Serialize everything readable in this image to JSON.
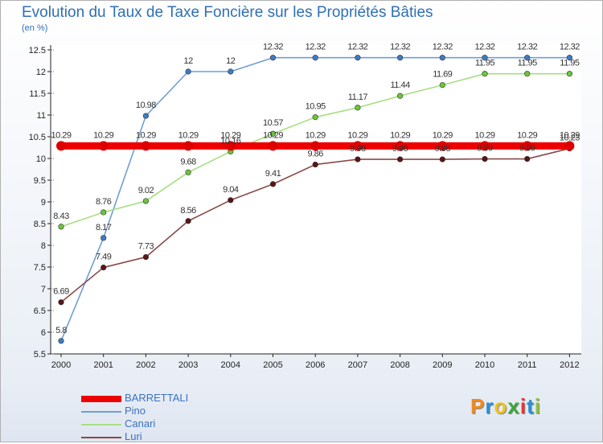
{
  "header": {
    "title": "Evolution du Taux de Taxe Foncière sur les Propriétés Bâties",
    "unit": "(en %)"
  },
  "chart_data": {
    "type": "line",
    "title": "Evolution du Taux de Taxe Foncière sur les Propriétés Bâties",
    "ylabel": "(en %)",
    "xlabel": "",
    "x": [
      "2000",
      "2001",
      "2002",
      "2003",
      "2004",
      "2005",
      "2006",
      "2007",
      "2008",
      "2009",
      "2010",
      "2011",
      "2012"
    ],
    "ylim": [
      5.5,
      12.5
    ],
    "yticks": [
      "5.5",
      "6",
      "6.5",
      "7",
      "7.5",
      "8",
      "8.5",
      "9",
      "9.5",
      "10",
      "10.5",
      "11",
      "11.5",
      "12",
      "12.5"
    ],
    "grid": false,
    "legend_position": "bottom-left",
    "series": [
      {
        "name": "BARRETTALI",
        "color": "#ee0000",
        "marker": "#dd0000",
        "emphasis": true,
        "values": [
          10.29,
          10.29,
          10.29,
          10.29,
          10.29,
          10.29,
          10.29,
          10.29,
          10.29,
          10.29,
          10.29,
          10.29,
          10.29
        ],
        "labels": [
          "10.29",
          "10.29",
          "10.29",
          "10.29",
          "10.29",
          "10.29",
          "10.29",
          "10.29",
          "10.29",
          "10.29",
          "10.29",
          "10.29",
          "10.29"
        ]
      },
      {
        "name": "Pino",
        "color": "#6f9fd4",
        "marker": "#3d7bc4",
        "values": [
          5.8,
          8.17,
          10.98,
          12,
          12,
          12.32,
          12.32,
          12.32,
          12.32,
          12.32,
          12.32,
          12.32,
          12.32
        ],
        "labels": [
          "5.8",
          "8.17",
          "10.98",
          "12",
          "12",
          "12.32",
          "12.32",
          "12.32",
          "12.32",
          "12.32",
          "12.32",
          "12.32",
          "12.32"
        ]
      },
      {
        "name": "Canari",
        "color": "#a6df80",
        "marker": "#6cc53a",
        "values": [
          8.43,
          8.76,
          9.02,
          9.68,
          10.16,
          10.57,
          10.95,
          11.17,
          11.44,
          11.69,
          11.95,
          11.95,
          11.95
        ],
        "labels": [
          "8.43",
          "8.76",
          "9.02",
          "9.68",
          "10.16",
          "10.57",
          "10.95",
          "11.17",
          "11.44",
          "11.69",
          "11.95",
          "11.95",
          "11.95"
        ]
      },
      {
        "name": "Luri",
        "color": "#8a4a4a",
        "marker": "#5a1414",
        "values": [
          6.69,
          7.49,
          7.73,
          8.56,
          9.04,
          9.41,
          9.86,
          9.98,
          9.98,
          9.98,
          9.99,
          9.99,
          10.23
        ],
        "labels": [
          "6.69",
          "7.49",
          "7.73",
          "8.56",
          "9.04",
          "9.41",
          "9.86",
          "9.98",
          "9.98",
          "9.98",
          "9.99",
          "9.99",
          "10.23"
        ]
      }
    ]
  },
  "logo": {
    "letters": [
      "P",
      "r",
      "o",
      "x",
      "i",
      "t",
      "i"
    ],
    "colors": [
      "#f08a1c",
      "#2a8fd6",
      "#f0c21c",
      "#3aa83a",
      "#e8362c",
      "#2a8fd6",
      "#8fc33a"
    ]
  }
}
